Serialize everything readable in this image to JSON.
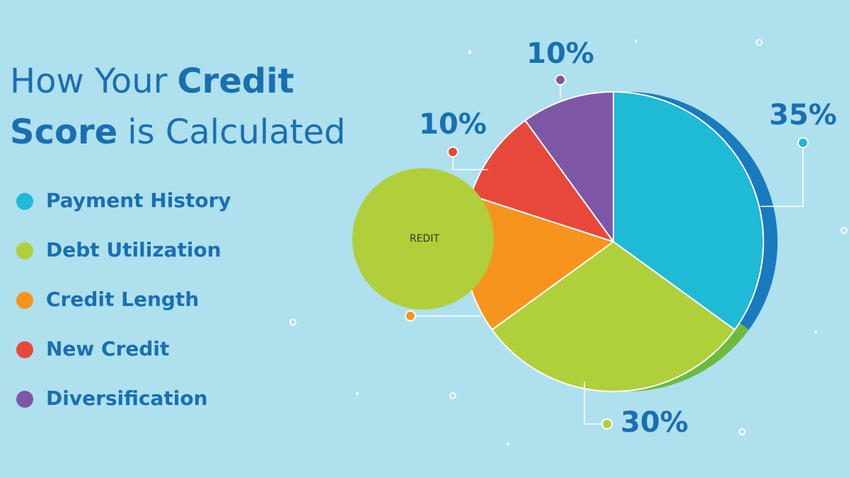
{
  "chart_data": {
    "type": "pie",
    "title": {
      "line1": [
        "How Your",
        "Credit"
      ],
      "line2": [
        "Score",
        "is Calculated"
      ]
    },
    "categories": [
      "Payment History",
      "Debt Utilization",
      "Credit Length",
      "New Credit",
      "Diversification"
    ],
    "values": [
      35,
      30,
      15,
      10,
      10
    ],
    "value_labels": [
      "35%",
      "30%",
      null,
      "10%",
      "10%"
    ],
    "colors": [
      "#1fbad6",
      "#afcf3b",
      "#f7941d",
      "#e8483a",
      "#7d57a6"
    ],
    "overlay_label": "REDIT"
  }
}
